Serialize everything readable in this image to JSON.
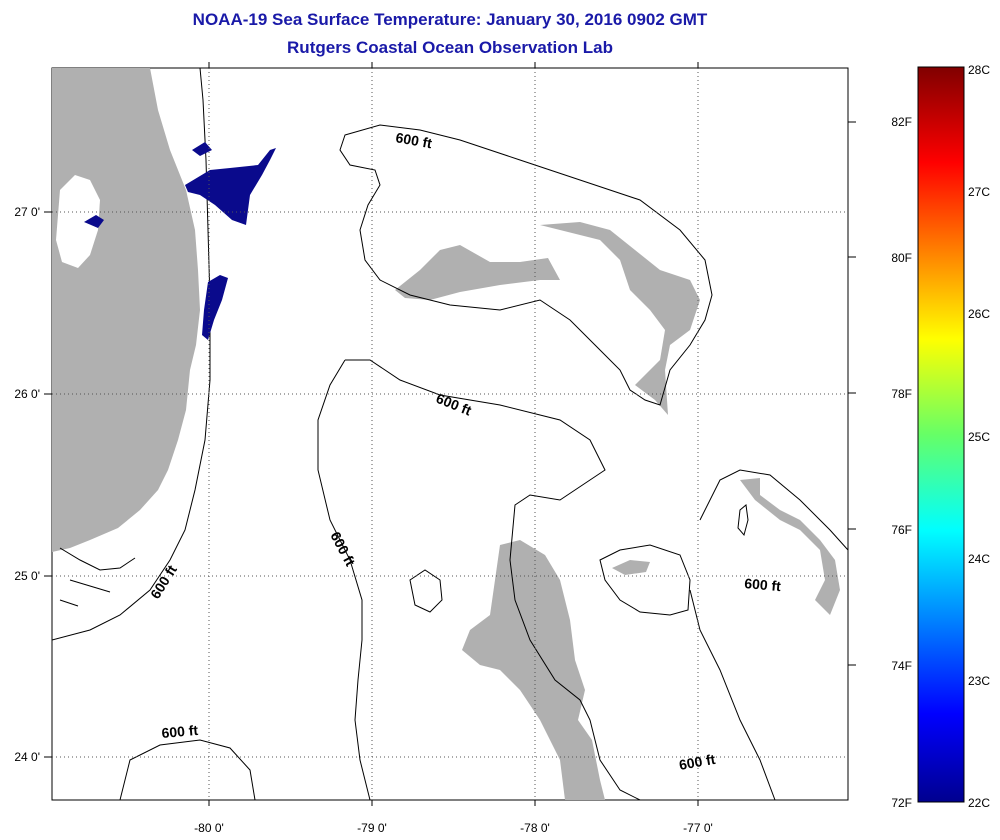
{
  "title": "NOAA-19 Sea Surface Temperature:  January 30, 2016 0902 GMT",
  "subtitle": "Rutgers Coastal Ocean Observation Lab",
  "lon_labels": [
    "-80 0'",
    "-79 0'",
    "-78 0'",
    "-77 0'"
  ],
  "lat_labels": [
    "27 0'",
    "26 0'",
    "25 0'",
    "24 0'"
  ],
  "contour_labels": [
    "600 ft",
    "600 ft",
    "600 ft",
    "600 ft",
    "600 ft",
    "600 ft"
  ],
  "colorbar": {
    "celsius": [
      "28C",
      "27C",
      "26C",
      "25C",
      "24C",
      "23C",
      "22C"
    ],
    "fahrenheit": [
      "82F",
      "80F",
      "78F",
      "76F",
      "74F",
      "72F"
    ]
  },
  "colors": {
    "title": "#1a1aa8",
    "land": "#b0b0b0",
    "sst_cold": "#0a0a8c"
  }
}
